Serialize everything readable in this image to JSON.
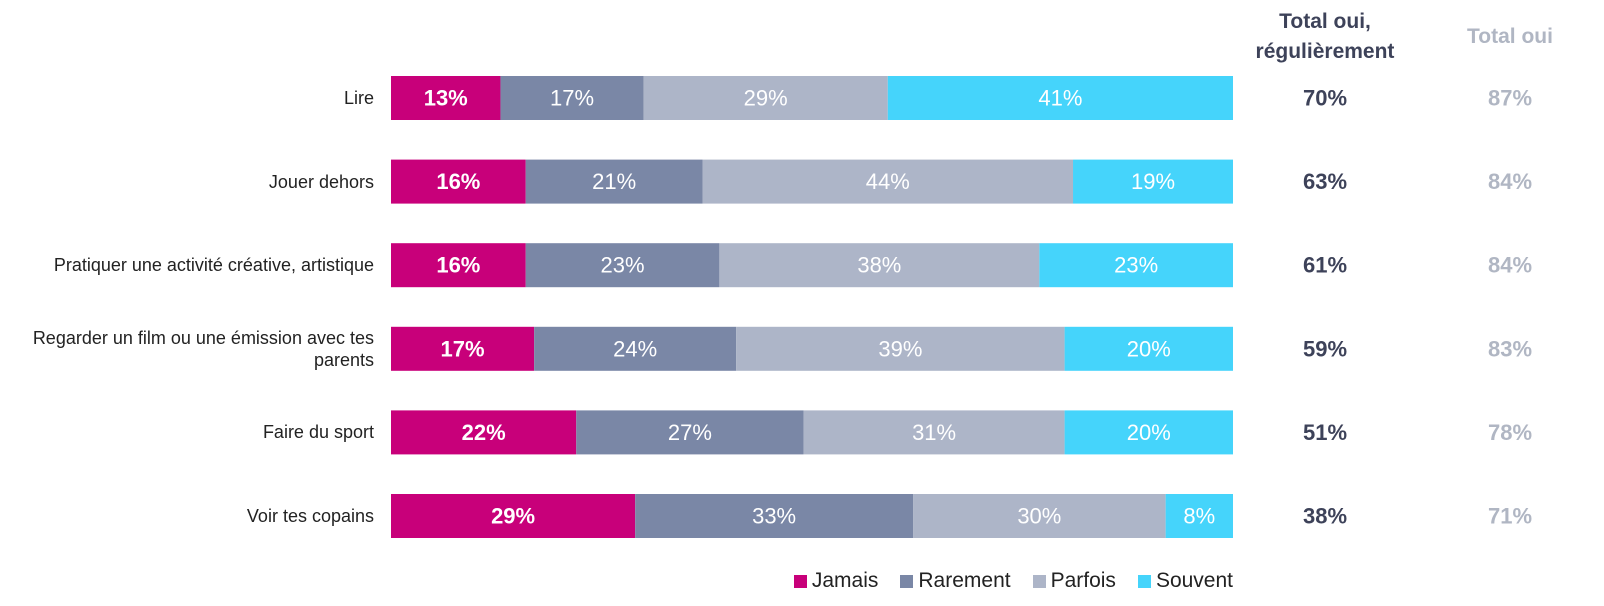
{
  "chart_data": {
    "type": "stacked_barh",
    "categories": [
      "Lire",
      "Jouer dehors",
      "Pratiquer une activité créative, artistique",
      "Regarder un film ou une émission avec tes parents",
      "Faire du sport",
      "Voir tes copains"
    ],
    "xlim": [
      0,
      100
    ],
    "series": [
      {
        "name": "Jamais",
        "color": "#c8007a",
        "values": [
          13,
          16,
          16,
          17,
          22,
          29
        ],
        "value_labels": [
          "13%",
          "16%",
          "16%",
          "17%",
          "22%",
          "29%"
        ]
      },
      {
        "name": "Rarement",
        "color": "#7a87a6",
        "values": [
          17,
          21,
          23,
          24,
          27,
          33
        ],
        "value_labels": [
          "17%",
          "21%",
          "23%",
          "24%",
          "27%",
          "33%"
        ]
      },
      {
        "name": "Parfois",
        "color": "#adb5c8",
        "values": [
          29,
          44,
          38,
          39,
          31,
          30
        ],
        "value_labels": [
          "29%",
          "44%",
          "38%",
          "39%",
          "31%",
          "30%"
        ]
      },
      {
        "name": "Souvent",
        "color": "#45d4fb",
        "values": [
          41,
          19,
          23,
          20,
          20,
          8
        ],
        "value_labels": [
          "41%",
          "19%",
          "23%",
          "20%",
          "20%",
          "8%"
        ]
      }
    ],
    "columns": [
      {
        "title": "Total oui, régulièrement",
        "color": "#3d4259",
        "values": [
          70,
          63,
          61,
          59,
          51,
          38
        ],
        "value_labels": [
          "70%",
          "63%",
          "61%",
          "59%",
          "51%",
          "38%"
        ]
      },
      {
        "title": "Total oui",
        "color": "#b0b6c3",
        "values": [
          87,
          84,
          84,
          83,
          78,
          71
        ],
        "value_labels": [
          "87%",
          "84%",
          "84%",
          "83%",
          "78%",
          "71%"
        ]
      }
    ]
  }
}
